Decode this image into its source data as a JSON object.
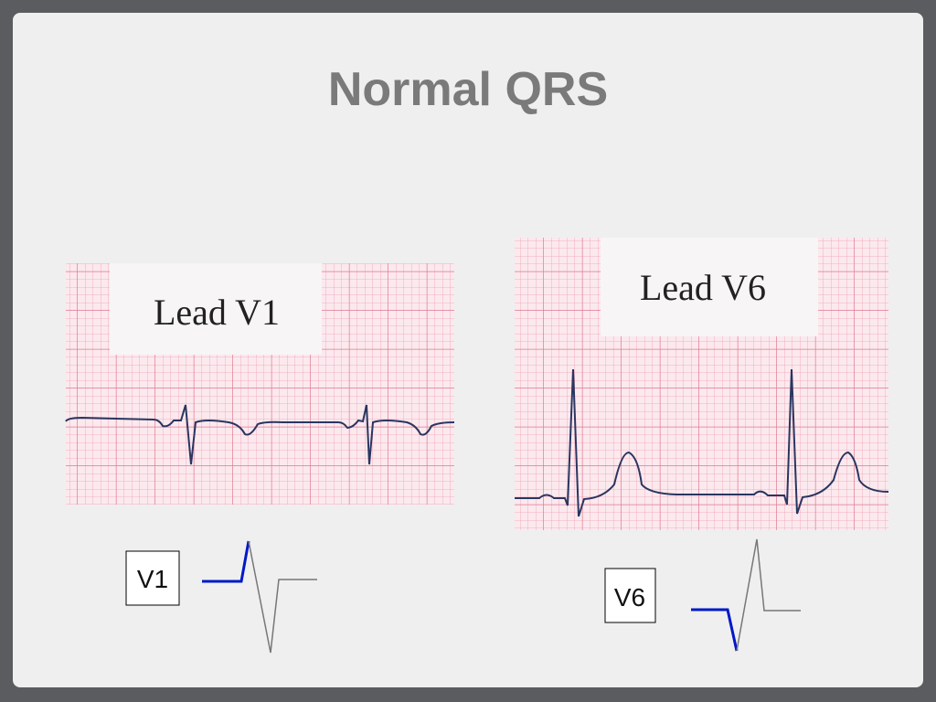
{
  "slide": {
    "title": "Normal QRS",
    "panels": [
      {
        "label": "Lead V1",
        "box": "V1"
      },
      {
        "label": "Lead V6",
        "box": "V6"
      }
    ]
  }
}
